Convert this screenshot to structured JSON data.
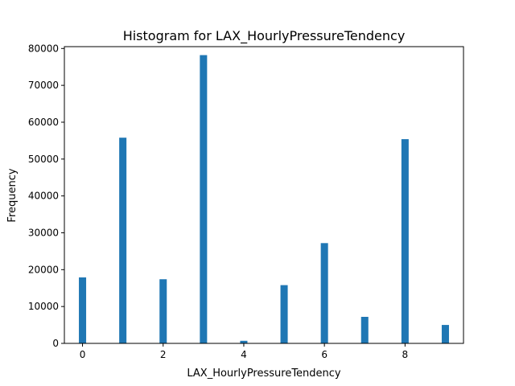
{
  "chart_data": {
    "type": "bar",
    "title": "Histogram for LAX_HourlyPressureTendency",
    "xlabel": "LAX_HourlyPressureTendency",
    "ylabel": "Frequency",
    "xlim": [
      -0.45,
      9.45
    ],
    "ylim": [
      0,
      80500
    ],
    "x_ticks": [
      0,
      2,
      4,
      6,
      8
    ],
    "y_ticks": [
      0,
      10000,
      20000,
      30000,
      40000,
      50000,
      60000,
      70000,
      80000
    ],
    "bar_width": 0.18,
    "grid": false,
    "legend": "none",
    "color": "#1f77b4",
    "bins": [
      {
        "x": 0,
        "value": 17900
      },
      {
        "x": 1,
        "value": 55800
      },
      {
        "x": 2,
        "value": 17400
      },
      {
        "x": 3,
        "value": 78200
      },
      {
        "x": 4,
        "value": 700
      },
      {
        "x": 5,
        "value": 15800
      },
      {
        "x": 6,
        "value": 27200
      },
      {
        "x": 7,
        "value": 7200
      },
      {
        "x": 8,
        "value": 55400
      },
      {
        "x": 9,
        "value": 5000
      }
    ]
  }
}
